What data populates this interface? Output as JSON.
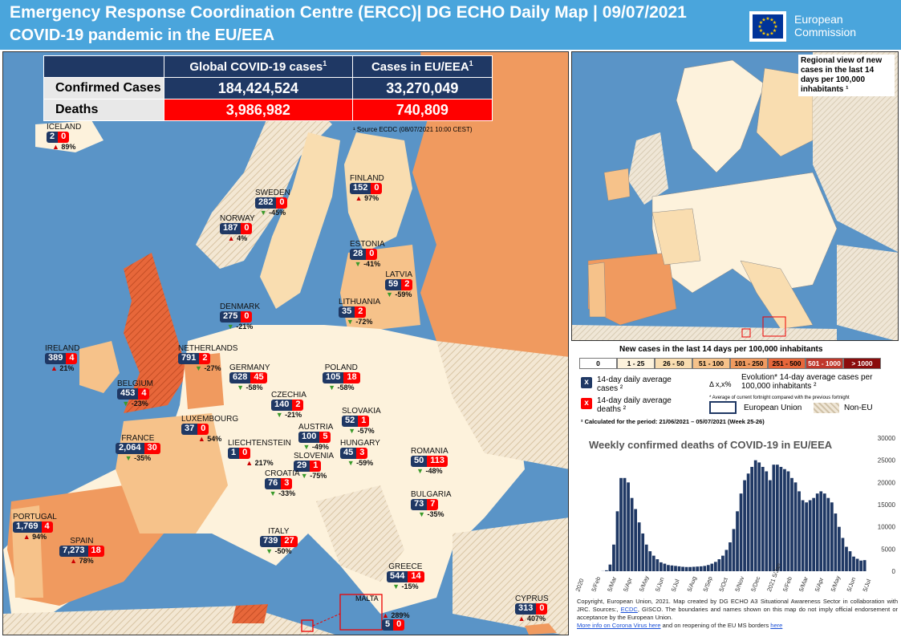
{
  "header": {
    "title_line1": "Emergency Response Coordination Centre (ERCC)| DG ECHO Daily Map | 09/07/2021",
    "title_line2": "COVID-19 pandemic in the EU/EEA",
    "logo_text_line1": "European",
    "logo_text_line2": "Commission"
  },
  "stats": {
    "col_global": "Global COVID-19 cases",
    "col_eu": "Cases in EU/EEA",
    "footnote_marker": "1",
    "row_confirmed_label": "Confirmed Cases",
    "row_deaths_label": "Deaths",
    "confirmed_global": "184,424,524",
    "confirmed_eu": "33,270,049",
    "deaths_global": "3,986,982",
    "deaths_eu": "740,809",
    "source": "¹ Source ECDC (08/07/2021 10:00 CEST)"
  },
  "countries": [
    {
      "name": "ICELAND",
      "cases": "2",
      "deaths": "0",
      "evolution": "89%",
      "trend": "up"
    },
    {
      "name": "SWEDEN",
      "cases": "282",
      "deaths": "0",
      "evolution": "-45%",
      "trend": "down"
    },
    {
      "name": "FINLAND",
      "cases": "152",
      "deaths": "0",
      "evolution": "97%",
      "trend": "up"
    },
    {
      "name": "NORWAY",
      "cases": "187",
      "deaths": "0",
      "evolution": "4%",
      "trend": "up"
    },
    {
      "name": "ESTONIA",
      "cases": "28",
      "deaths": "0",
      "evolution": "-41%",
      "trend": "down"
    },
    {
      "name": "LATVIA",
      "cases": "59",
      "deaths": "2",
      "evolution": "-59%",
      "trend": "down"
    },
    {
      "name": "DENMARK",
      "cases": "275",
      "deaths": "0",
      "evolution": "-21%",
      "trend": "down"
    },
    {
      "name": "LITHUANIA",
      "cases": "35",
      "deaths": "2",
      "evolution": "-72%",
      "trend": "down"
    },
    {
      "name": "IRELAND",
      "cases": "389",
      "deaths": "4",
      "evolution": "21%",
      "trend": "up"
    },
    {
      "name": "NETHERLANDS",
      "cases": "791",
      "deaths": "2",
      "evolution": "-27%",
      "trend": "down"
    },
    {
      "name": "GERMANY",
      "cases": "628",
      "deaths": "45",
      "evolution": "-58%",
      "trend": "down"
    },
    {
      "name": "POLAND",
      "cases": "105",
      "deaths": "18",
      "evolution": "-58%",
      "trend": "down"
    },
    {
      "name": "BELGIUM",
      "cases": "453",
      "deaths": "4",
      "evolution": "-23%",
      "trend": "down"
    },
    {
      "name": "CZECHIA",
      "cases": "140",
      "deaths": "2",
      "evolution": "-21%",
      "trend": "down"
    },
    {
      "name": "SLOVAKIA",
      "cases": "52",
      "deaths": "1",
      "evolution": "-57%",
      "trend": "down"
    },
    {
      "name": "LUXEMBOURG",
      "cases": "37",
      "deaths": "0",
      "evolution": "54%",
      "trend": "up"
    },
    {
      "name": "AUSTRIA",
      "cases": "100",
      "deaths": "5",
      "evolution": "-49%",
      "trend": "down"
    },
    {
      "name": "HUNGARY",
      "cases": "45",
      "deaths": "3",
      "evolution": "-59%",
      "trend": "down"
    },
    {
      "name": "FRANCE",
      "cases": "2,064",
      "deaths": "30",
      "evolution": "-35%",
      "trend": "down"
    },
    {
      "name": "LIECHTENSTEIN",
      "cases": "1",
      "deaths": "0",
      "evolution": "217%",
      "trend": "up"
    },
    {
      "name": "SLOVENIA",
      "cases": "29",
      "deaths": "1",
      "evolution": "-75%",
      "trend": "down"
    },
    {
      "name": "ROMANIA",
      "cases": "50",
      "deaths": "113",
      "evolution": "-48%",
      "trend": "down"
    },
    {
      "name": "CROATIA",
      "cases": "76",
      "deaths": "3",
      "evolution": "-33%",
      "trend": "down"
    },
    {
      "name": "BULGARIA",
      "cases": "73",
      "deaths": "7",
      "evolution": "-35%",
      "trend": "down"
    },
    {
      "name": "PORTUGAL",
      "cases": "1,769",
      "deaths": "4",
      "evolution": "94%",
      "trend": "up"
    },
    {
      "name": "ITALY",
      "cases": "739",
      "deaths": "27",
      "evolution": "-50%",
      "trend": "down"
    },
    {
      "name": "SPAIN",
      "cases": "7,273",
      "deaths": "18",
      "evolution": "78%",
      "trend": "up"
    },
    {
      "name": "GREECE",
      "cases": "544",
      "deaths": "14",
      "evolution": "-15%",
      "trend": "down"
    },
    {
      "name": "MALTA",
      "cases": "5",
      "deaths": "0",
      "evolution": "289%",
      "trend": "up"
    },
    {
      "name": "CYPRUS",
      "cases": "313",
      "deaths": "0",
      "evolution": "407%",
      "trend": "up"
    }
  ],
  "region_map": {
    "title": "Regional view of new cases in the last 14 days per 100,000 inhabitants ¹"
  },
  "legend": {
    "title": "New cases in the last 14 days per 100,000 inhabitants",
    "scale": [
      "0",
      "1 - 25",
      "26 - 50",
      "51 - 100",
      "101 - 250",
      "251 - 500",
      "501 - 1000",
      "> 1000"
    ],
    "scale_colors": [
      "#ffffff",
      "#fdf2dc",
      "#f9ddb0",
      "#f6c28a",
      "#f09a5f",
      "#e7673a",
      "#c0382b",
      "#8b0d0d"
    ],
    "cases_marker": "x",
    "cases_text": "14-day daily average cases ²",
    "deaths_marker": "x",
    "deaths_text": "14-day daily average deaths ²",
    "evolution_symbol": "Δ x,x%",
    "evolution_text": "Evolution* 14-day average cases per 100,000 inhabitants ²",
    "evolution_note": "* Average of current fortnight compared with the previous fortnight",
    "eu_label": "European Union",
    "non_eu_label": "Non-EU",
    "period_note": "² Calculated for the period: 21/06/2021 – 05/07/2021 (Week 25-26)"
  },
  "chart_data": {
    "type": "bar",
    "title": "Weekly confirmed deaths of COVID-19 in EU/EEA",
    "ylim": [
      0,
      30000
    ],
    "yticks": [
      "0",
      "5000",
      "10000",
      "15000",
      "20000",
      "25000",
      "30000"
    ],
    "x_tick_labels": [
      "2020",
      "5/Feb",
      "5/Mar",
      "5/Apr",
      "5/May",
      "5/Jun",
      "5/Jul",
      "5/Aug",
      "5/Sep",
      "5/Oct",
      "5/Nov",
      "5/Dec",
      "2021 5/Jan",
      "5/Feb",
      "5/Mar",
      "5/Apr",
      "5/May",
      "5/Jun",
      "5/Jul"
    ],
    "values": [
      0,
      0,
      0,
      0,
      0,
      0,
      30,
      200,
      1500,
      6000,
      13500,
      21000,
      21000,
      20000,
      16500,
      14000,
      11000,
      8500,
      6000,
      4500,
      3500,
      2700,
      2000,
      1700,
      1400,
      1300,
      1200,
      1100,
      1000,
      950,
      950,
      1000,
      1050,
      1100,
      1200,
      1400,
      1700,
      2100,
      2700,
      3500,
      4800,
      6500,
      9500,
      13500,
      17500,
      20500,
      22000,
      23500,
      25000,
      24500,
      23500,
      22500,
      20500,
      24000,
      24000,
      23500,
      23000,
      22500,
      21000,
      20000,
      18000,
      16000,
      15500,
      16000,
      16500,
      17500,
      18000,
      17500,
      16500,
      15500,
      13000,
      10000,
      7500,
      5500,
      4500,
      3300,
      2800,
      2400,
      2500
    ]
  },
  "footer": {
    "copyright_prefix": "Copyright, European Union, 2021. Map created by DG ECHO A3 Situational Awareness Sector in collaboration with JRC. Sources:,",
    "ecdc_link": "ECDC",
    "copyright_suffix": ", GISCO. The boundaries and names shown on this map do not imply official endorsement or acceptance by the European Union.",
    "link1": "More info on Corona Virus here",
    "middle": "and on reopening of the EU MS borders",
    "link2": "here"
  },
  "malta_inset_label": "MALTA"
}
